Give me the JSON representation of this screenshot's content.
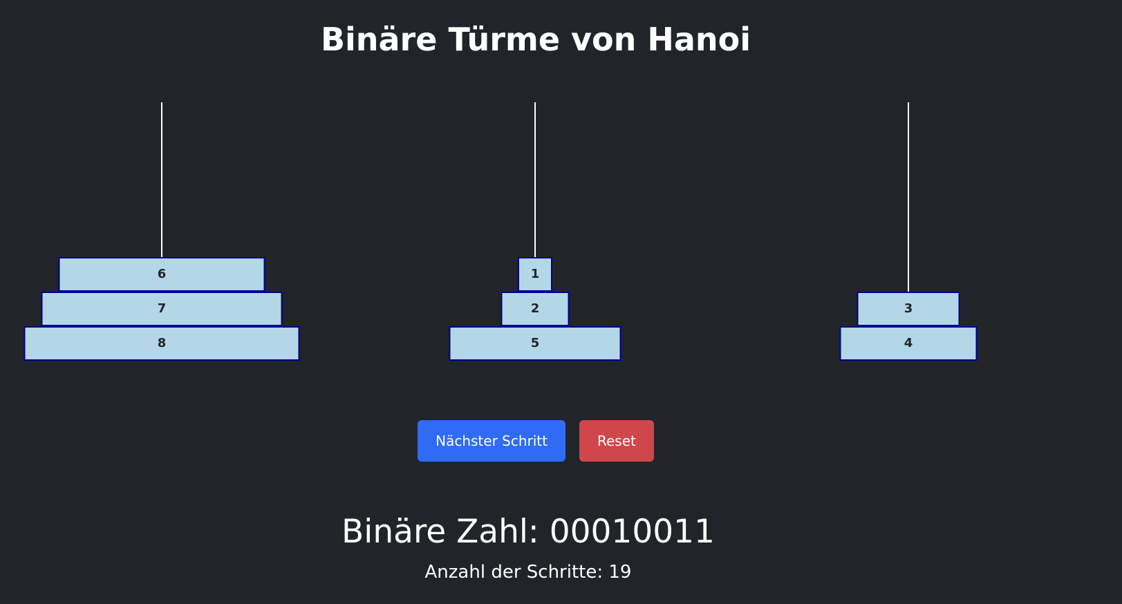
{
  "title": "Binäre Türme von Hanoi",
  "towers": [
    {
      "disks": [
        "6",
        "7",
        "8"
      ]
    },
    {
      "disks": [
        "1",
        "2",
        "5"
      ]
    },
    {
      "disks": [
        "3",
        "4"
      ]
    }
  ],
  "buttons": {
    "next_label": "Nächster Schritt",
    "reset_label": "Reset"
  },
  "binary": {
    "text": "Binäre Zahl: 00010011",
    "value": "00010011"
  },
  "steps": {
    "text": "Anzahl der Schritte: 19",
    "count": 19
  },
  "colors": {
    "background": "#212529",
    "disk_fill": "#b4d7e8",
    "disk_border": "#00008b",
    "primary_button": "#2f6bf5",
    "danger_button": "#cf474a"
  }
}
